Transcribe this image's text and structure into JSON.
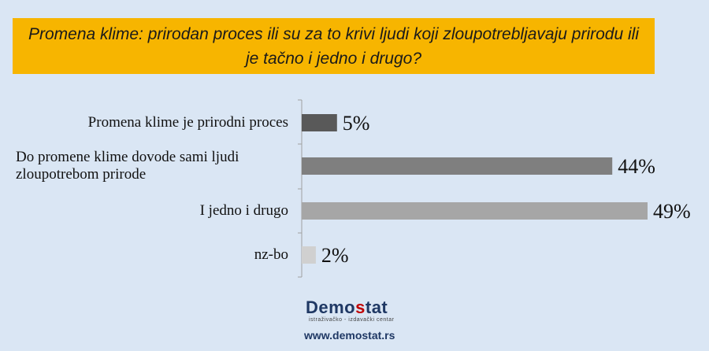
{
  "chart_data": {
    "type": "bar",
    "orientation": "horizontal",
    "title": "Promena klime: prirodan proces ili su za to krivi ljudi koji zloupotrebljavaju prirodu ili je tačno i jedno i drugo?",
    "categories": [
      "Promena klime je prirodni proces",
      "Do promene klime dovode sami ljudi zloupotrebom prirode",
      "I jedno i drugo",
      "nz-bo"
    ],
    "values": [
      5,
      44,
      49,
      2
    ],
    "value_labels": [
      "5%",
      "44%",
      "49%",
      "2%"
    ],
    "bar_colors": [
      "#595959",
      "#7f7f7f",
      "#a6a6a6",
      "#d0d0d0"
    ],
    "title_background": "#f7b500",
    "background": "#dae6f4",
    "xlim": [
      0,
      49
    ]
  },
  "footer": {
    "logo_part1": "Demo",
    "logo_accent": "s",
    "logo_part2": "tat",
    "logo_tagline": "istraživačko - izdavački centar",
    "url": "www.demostat.rs"
  }
}
